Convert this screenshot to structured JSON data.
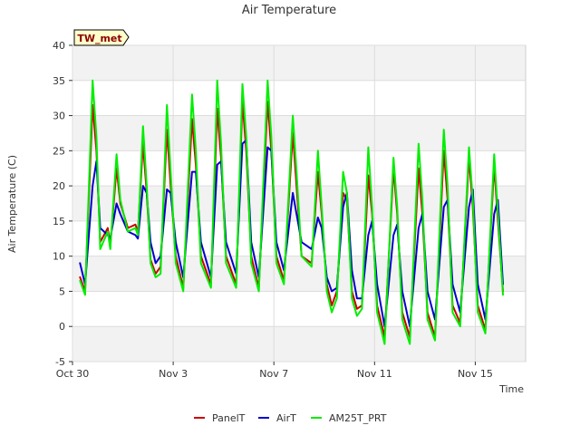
{
  "chart_data": {
    "type": "line",
    "title": "Air Temperature",
    "xlabel": "Time",
    "ylabel": "Air Temperature (C)",
    "badge": "TW_met",
    "ylim": [
      -5,
      40
    ],
    "yticks": [
      -5,
      0,
      5,
      10,
      15,
      20,
      25,
      30,
      35,
      40
    ],
    "xlim_days": [
      0,
      18
    ],
    "xticks": [
      {
        "day": 0,
        "label": "Oct 30"
      },
      {
        "day": 4,
        "label": "Nov 3"
      },
      {
        "day": 8,
        "label": "Nov 7"
      },
      {
        "day": 12,
        "label": "Nov 11"
      },
      {
        "day": 16,
        "label": "Nov 15"
      }
    ],
    "grid": true,
    "legend_position": "bottom-center",
    "series": [
      {
        "name": "PanelT",
        "color": "#cc0000",
        "points": [
          [
            0.3,
            7
          ],
          [
            0.5,
            5
          ],
          [
            0.8,
            31.5
          ],
          [
            0.95,
            25
          ],
          [
            1.1,
            12
          ],
          [
            1.4,
            14
          ],
          [
            1.5,
            11.5
          ],
          [
            1.75,
            22.5
          ],
          [
            1.9,
            17.5
          ],
          [
            2.2,
            14
          ],
          [
            2.5,
            14.5
          ],
          [
            2.6,
            13.5
          ],
          [
            2.8,
            26
          ],
          [
            2.95,
            19
          ],
          [
            3.1,
            9.5
          ],
          [
            3.3,
            7.5
          ],
          [
            3.5,
            8.5
          ],
          [
            3.75,
            28
          ],
          [
            3.9,
            20
          ],
          [
            4.1,
            10
          ],
          [
            4.4,
            5.5
          ],
          [
            4.75,
            29.5
          ],
          [
            4.9,
            23
          ],
          [
            5.1,
            10
          ],
          [
            5.5,
            6
          ],
          [
            5.75,
            31
          ],
          [
            5.9,
            24
          ],
          [
            6.1,
            10
          ],
          [
            6.5,
            6
          ],
          [
            6.75,
            32
          ],
          [
            6.9,
            25
          ],
          [
            7.1,
            10
          ],
          [
            7.4,
            5.5
          ],
          [
            7.75,
            32
          ],
          [
            7.9,
            25
          ],
          [
            8.1,
            10
          ],
          [
            8.4,
            6.5
          ],
          [
            8.75,
            27.5
          ],
          [
            8.9,
            20
          ],
          [
            9.1,
            10
          ],
          [
            9.5,
            9
          ],
          [
            9.75,
            22
          ],
          [
            9.9,
            16
          ],
          [
            10.1,
            6
          ],
          [
            10.3,
            3
          ],
          [
            10.5,
            5
          ],
          [
            10.75,
            19
          ],
          [
            10.9,
            18
          ],
          [
            11.1,
            5
          ],
          [
            11.3,
            2.5
          ],
          [
            11.5,
            3
          ],
          [
            11.75,
            21.5
          ],
          [
            11.9,
            16
          ],
          [
            12.1,
            3
          ],
          [
            12.4,
            -1.5
          ],
          [
            12.75,
            22.5
          ],
          [
            12.9,
            16
          ],
          [
            13.1,
            2
          ],
          [
            13.4,
            -1.5
          ],
          [
            13.75,
            22.5
          ],
          [
            13.9,
            16
          ],
          [
            14.1,
            2
          ],
          [
            14.4,
            -1.5
          ],
          [
            14.75,
            25
          ],
          [
            14.9,
            18
          ],
          [
            15.1,
            3
          ],
          [
            15.4,
            0.5
          ],
          [
            15.75,
            24
          ],
          [
            15.9,
            17
          ],
          [
            16.1,
            3
          ],
          [
            16.4,
            -0.5
          ],
          [
            16.75,
            23
          ],
          [
            16.9,
            15
          ],
          [
            17.1,
            5
          ]
        ]
      },
      {
        "name": "AirT",
        "color": "#0000cc",
        "points": [
          [
            0.3,
            9
          ],
          [
            0.5,
            6
          ],
          [
            0.8,
            20
          ],
          [
            0.95,
            23.5
          ],
          [
            1.1,
            14
          ],
          [
            1.4,
            13
          ],
          [
            1.5,
            12.5
          ],
          [
            1.75,
            17.5
          ],
          [
            1.9,
            16
          ],
          [
            2.2,
            13.5
          ],
          [
            2.5,
            13
          ],
          [
            2.6,
            12.5
          ],
          [
            2.8,
            20
          ],
          [
            2.95,
            19
          ],
          [
            3.1,
            12
          ],
          [
            3.3,
            9
          ],
          [
            3.5,
            10
          ],
          [
            3.75,
            19.5
          ],
          [
            3.9,
            19
          ],
          [
            4.1,
            12
          ],
          [
            4.4,
            7
          ],
          [
            4.75,
            22
          ],
          [
            4.9,
            22
          ],
          [
            5.1,
            12
          ],
          [
            5.5,
            7
          ],
          [
            5.75,
            23
          ],
          [
            5.9,
            23.5
          ],
          [
            6.1,
            12
          ],
          [
            6.5,
            7.5
          ],
          [
            6.75,
            26
          ],
          [
            6.9,
            26.5
          ],
          [
            7.1,
            12
          ],
          [
            7.4,
            7
          ],
          [
            7.75,
            25.5
          ],
          [
            7.9,
            25
          ],
          [
            8.1,
            12
          ],
          [
            8.4,
            8
          ],
          [
            8.75,
            19
          ],
          [
            8.9,
            16
          ],
          [
            9.1,
            12
          ],
          [
            9.5,
            11
          ],
          [
            9.75,
            15.5
          ],
          [
            9.9,
            14
          ],
          [
            10.1,
            7
          ],
          [
            10.3,
            5
          ],
          [
            10.5,
            5.5
          ],
          [
            10.75,
            17
          ],
          [
            10.9,
            19
          ],
          [
            11.1,
            8
          ],
          [
            11.3,
            4
          ],
          [
            11.5,
            4
          ],
          [
            11.75,
            13
          ],
          [
            11.9,
            15
          ],
          [
            12.1,
            6
          ],
          [
            12.4,
            0
          ],
          [
            12.75,
            13
          ],
          [
            12.9,
            14.5
          ],
          [
            13.1,
            5
          ],
          [
            13.4,
            0
          ],
          [
            13.75,
            14
          ],
          [
            13.9,
            16
          ],
          [
            14.1,
            5
          ],
          [
            14.4,
            1
          ],
          [
            14.75,
            17
          ],
          [
            14.9,
            18
          ],
          [
            15.1,
            6
          ],
          [
            15.4,
            2
          ],
          [
            15.75,
            17
          ],
          [
            15.9,
            19.5
          ],
          [
            16.1,
            6
          ],
          [
            16.4,
            1
          ],
          [
            16.75,
            16
          ],
          [
            16.9,
            18
          ],
          [
            17.1,
            6
          ]
        ]
      },
      {
        "name": "AM25T_PRT",
        "color": "#00ee00",
        "points": [
          [
            0.3,
            6.5
          ],
          [
            0.5,
            4.5
          ],
          [
            0.8,
            35
          ],
          [
            0.95,
            27
          ],
          [
            1.1,
            11
          ],
          [
            1.4,
            13.5
          ],
          [
            1.5,
            11
          ],
          [
            1.75,
            24.5
          ],
          [
            1.9,
            18
          ],
          [
            2.2,
            13.5
          ],
          [
            2.5,
            14
          ],
          [
            2.6,
            13
          ],
          [
            2.8,
            28.5
          ],
          [
            2.95,
            20
          ],
          [
            3.1,
            9
          ],
          [
            3.3,
            7
          ],
          [
            3.5,
            7.5
          ],
          [
            3.75,
            31.5
          ],
          [
            3.9,
            22
          ],
          [
            4.1,
            9
          ],
          [
            4.4,
            5
          ],
          [
            4.75,
            33
          ],
          [
            4.9,
            25
          ],
          [
            5.1,
            9
          ],
          [
            5.5,
            5.5
          ],
          [
            5.75,
            35
          ],
          [
            5.9,
            26
          ],
          [
            6.1,
            9
          ],
          [
            6.5,
            5.5
          ],
          [
            6.75,
            34.5
          ],
          [
            6.9,
            27
          ],
          [
            7.1,
            9
          ],
          [
            7.4,
            5
          ],
          [
            7.75,
            35
          ],
          [
            7.9,
            27
          ],
          [
            8.1,
            9
          ],
          [
            8.4,
            6
          ],
          [
            8.75,
            30
          ],
          [
            8.9,
            22
          ],
          [
            9.1,
            10
          ],
          [
            9.5,
            8.5
          ],
          [
            9.75,
            25
          ],
          [
            9.9,
            17
          ],
          [
            10.1,
            5
          ],
          [
            10.3,
            2
          ],
          [
            10.5,
            4
          ],
          [
            10.75,
            22
          ],
          [
            10.9,
            19
          ],
          [
            11.1,
            4
          ],
          [
            11.3,
            1.5
          ],
          [
            11.5,
            2.5
          ],
          [
            11.75,
            25.5
          ],
          [
            11.9,
            17
          ],
          [
            12.1,
            2
          ],
          [
            12.4,
            -2.5
          ],
          [
            12.75,
            24
          ],
          [
            12.9,
            17
          ],
          [
            13.1,
            1
          ],
          [
            13.4,
            -2.5
          ],
          [
            13.75,
            26
          ],
          [
            13.9,
            18
          ],
          [
            14.1,
            1
          ],
          [
            14.4,
            -2
          ],
          [
            14.75,
            28
          ],
          [
            14.9,
            20
          ],
          [
            15.1,
            2
          ],
          [
            15.4,
            0
          ],
          [
            15.75,
            25.5
          ],
          [
            15.9,
            18
          ],
          [
            16.1,
            2
          ],
          [
            16.4,
            -1
          ],
          [
            16.75,
            24.5
          ],
          [
            16.9,
            16
          ],
          [
            17.1,
            4.5
          ]
        ]
      }
    ]
  }
}
